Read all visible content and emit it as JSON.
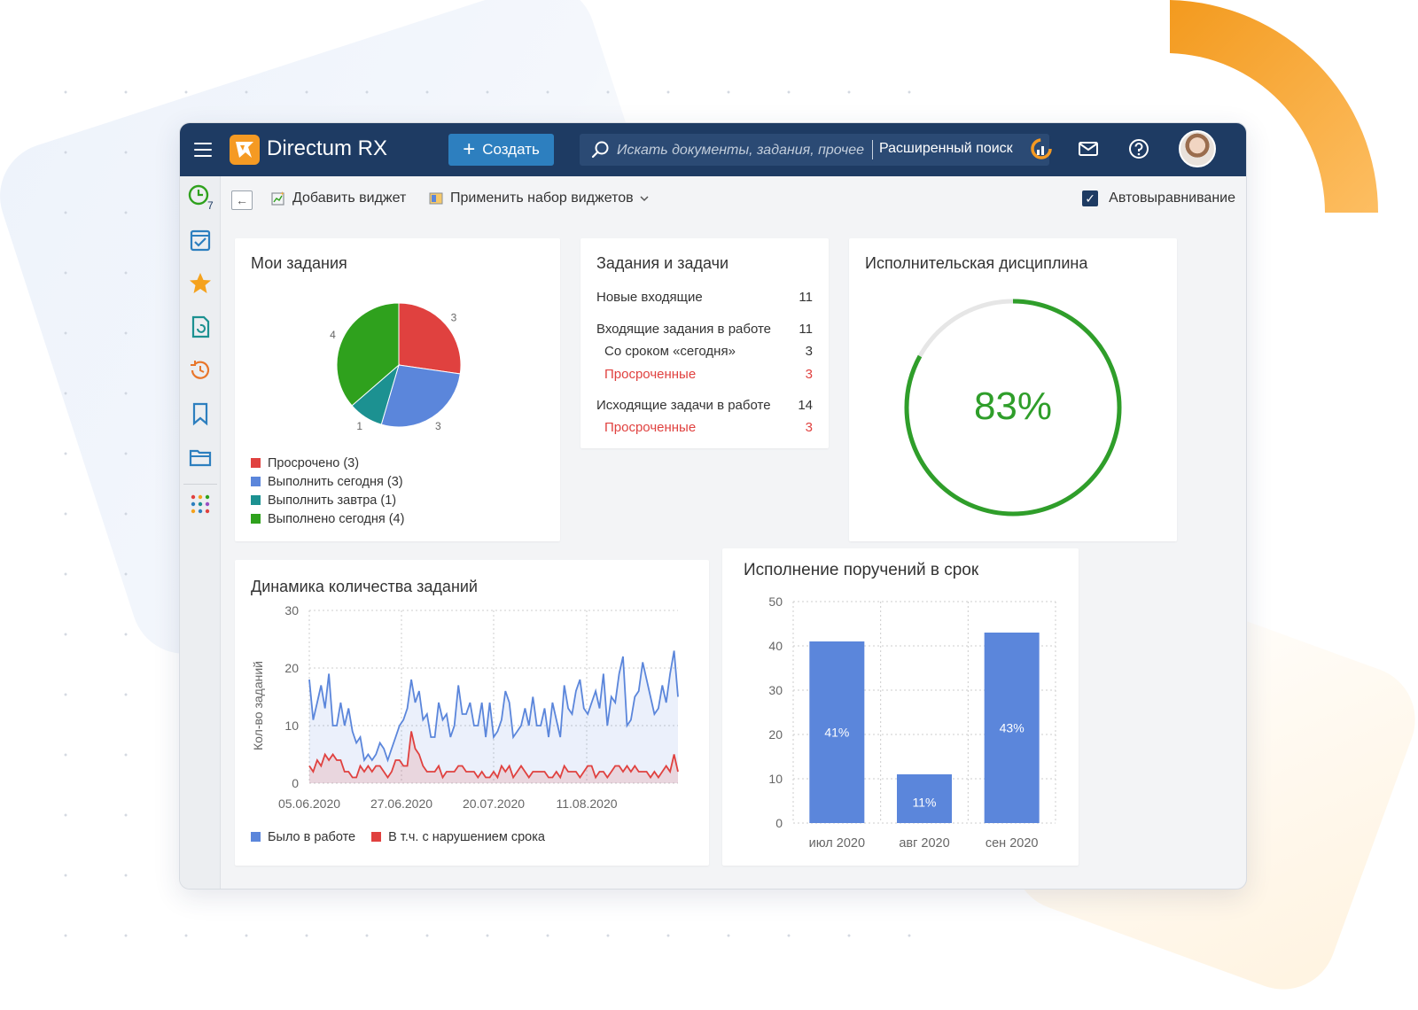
{
  "app": {
    "name": "Directum RX",
    "create_label": "Создать",
    "search_placeholder": "Искать документы, задания, прочее",
    "advanced_search_label": "Расширенный поиск",
    "sidebar_badge": "7"
  },
  "toolbar": {
    "add_widget_label": "Добавить виджет",
    "apply_set_label": "Применить набор виджетов",
    "auto_align_label": "Автовыравнивание",
    "auto_align_checked": true
  },
  "widgets": {
    "my_tasks": {
      "title": "Мои задания",
      "legend": [
        {
          "label": "Просрочено (3)",
          "color": "#e0413f"
        },
        {
          "label": "Выполнить сегодня (3)",
          "color": "#5b86db"
        },
        {
          "label": "Выполнить завтра (1)",
          "color": "#1c9191"
        },
        {
          "label": "Выполнено сегодня (4)",
          "color": "#2fa11d"
        }
      ]
    },
    "tasks_summary": {
      "title": "Задания и задачи",
      "rows": [
        {
          "label": "Новые входящие",
          "value": "11"
        },
        {
          "label": "Входящие задания в работе",
          "value": "11"
        },
        {
          "label": "Со сроком «сегодня»",
          "value": "3"
        },
        {
          "label": "Просроченные",
          "value": "3"
        },
        {
          "label": "Исходящие задачи в работе",
          "value": "14"
        },
        {
          "label": "Просроченные",
          "value": "3"
        }
      ]
    },
    "discipline": {
      "title": "Исполнительская дисциплина",
      "value_label": "83%",
      "value": 0.83,
      "color": "#2f9e2a"
    },
    "dynamics": {
      "title": "Динамика количества заданий",
      "legend": [
        {
          "label": "Было в работе",
          "color": "#5b86db"
        },
        {
          "label": "В т.ч. с нарушением срока",
          "color": "#e0413f"
        }
      ]
    },
    "execution": {
      "title": "Исполнение поручений в срок"
    }
  },
  "chart_data": [
    {
      "type": "pie",
      "categories": [
        "Просрочено",
        "Выполнить сегодня",
        "Выполнить завтра",
        "Выполнено сегодня"
      ],
      "values": [
        3,
        3,
        1,
        4
      ],
      "data_labels": [
        "3",
        "3",
        "1",
        "4"
      ],
      "colors": [
        "#e0413f",
        "#5b86db",
        "#1c9191",
        "#2fa11d"
      ],
      "legend_position": "bottom"
    },
    {
      "type": "area",
      "ylabel": "Кол-во заданий",
      "ylim": [
        0,
        30
      ],
      "yticks": [
        "0",
        "10",
        "20",
        "30"
      ],
      "xticks": [
        "05.06.2020",
        "27.06.2020",
        "20.07.2020",
        "11.08.2020"
      ],
      "grid": true,
      "legend_position": "bottom-left",
      "series": [
        {
          "name": "Было в работе",
          "color": "#5b86db",
          "values": [
            18,
            11,
            14,
            17,
            13,
            19,
            10,
            10,
            14,
            10,
            13,
            9,
            7,
            8,
            4,
            5,
            4,
            5,
            7,
            6,
            4,
            6,
            8,
            10,
            11,
            13,
            18,
            14,
            16,
            11,
            12,
            8,
            8,
            14,
            11,
            12,
            8,
            10,
            17,
            12,
            12,
            14,
            10,
            10,
            14,
            8,
            14,
            8,
            9,
            11,
            16,
            14,
            8,
            9,
            10,
            13,
            10,
            15,
            10,
            10,
            13,
            8,
            14,
            11,
            8,
            17,
            13,
            12,
            16,
            18,
            13,
            12,
            14,
            16,
            13,
            19,
            10,
            15,
            14,
            19,
            22,
            10,
            11,
            15,
            16,
            21,
            18,
            15,
            12,
            13,
            17,
            14,
            19,
            23,
            15
          ]
        },
        {
          "name": "В т.ч. с нарушением срока",
          "color": "#e0413f",
          "values": [
            3,
            2,
            4,
            3,
            5,
            4,
            5,
            4,
            4,
            2,
            2,
            1,
            1,
            3,
            2,
            3,
            2,
            3,
            3,
            2,
            1,
            2,
            4,
            4,
            3,
            3,
            9,
            6,
            5,
            3,
            2,
            2,
            2,
            3,
            1,
            2,
            2,
            2,
            3,
            3,
            2,
            2,
            2,
            1,
            2,
            1,
            1,
            2,
            1,
            3,
            2,
            3,
            1,
            2,
            3,
            2,
            1,
            2,
            2,
            2,
            2,
            1,
            1,
            2,
            1,
            3,
            2,
            2,
            2,
            1,
            2,
            3,
            3,
            1,
            2,
            2,
            1,
            2,
            3,
            3,
            2,
            3,
            2,
            3,
            2,
            2,
            2,
            1,
            2,
            1,
            2,
            3,
            2,
            5,
            2
          ]
        }
      ]
    },
    {
      "type": "bar",
      "categories": [
        "июл 2020",
        "авг 2020",
        "сен 2020"
      ],
      "values": [
        41,
        11,
        43
      ],
      "data_labels": [
        "41%",
        "11%",
        "43%"
      ],
      "ylim": [
        0,
        50
      ],
      "yticks": [
        "0",
        "10",
        "20",
        "30",
        "40",
        "50"
      ],
      "grid": true,
      "color": "#5b86db"
    }
  ]
}
